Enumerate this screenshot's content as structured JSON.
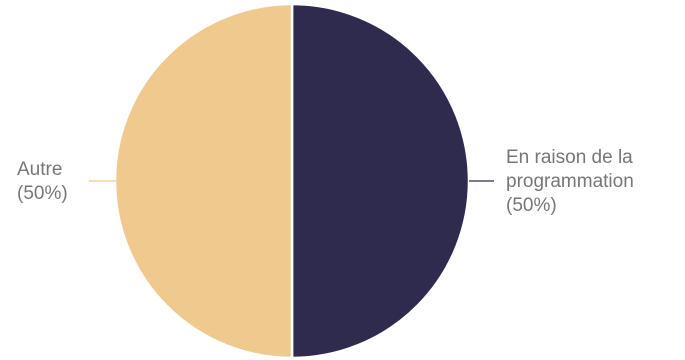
{
  "chart_data": {
    "type": "pie",
    "slices": [
      {
        "label": "En raison de la programmation",
        "label_lines": [
          "En raison de la",
          "programmation"
        ],
        "value": 50,
        "value_text": "(50%)",
        "color": "#2f2b4f"
      },
      {
        "label": "Autre",
        "label_lines": [
          "Autre"
        ],
        "value": 50,
        "value_text": "(50%)",
        "color": "#f0c98f"
      }
    ],
    "title": "",
    "legend": "none",
    "label_style": "outside labels with leader lines"
  }
}
